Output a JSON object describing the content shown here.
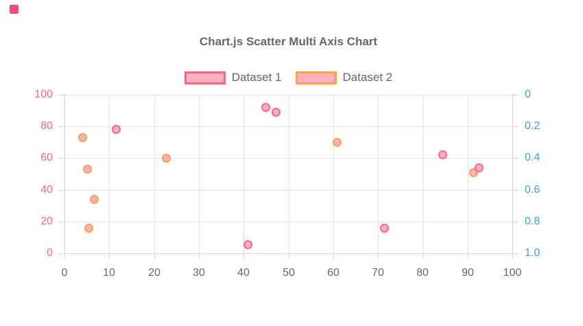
{
  "page": {
    "swatch_color": "#ef4e78"
  },
  "chart_data": {
    "type": "scatter",
    "title": "Chart.js Scatter Multi Axis Chart",
    "legend_position": "top",
    "grid": true,
    "colors": {
      "grid": "#e6e6e6",
      "axis_border": "#d4d4d4",
      "text_gray": "#666666"
    },
    "x_axis": {
      "min": 0,
      "max": 100,
      "ticks": [
        0,
        10,
        20,
        30,
        40,
        50,
        60,
        70,
        80,
        90,
        100
      ],
      "color": "#666666"
    },
    "y_axis_left": {
      "min": 0,
      "max": 100,
      "ticks": [
        100,
        80,
        60,
        40,
        20,
        0
      ],
      "color": "#ff6384"
    },
    "y_axis_right": {
      "min": 0,
      "max": 1,
      "reversed": true,
      "ticks": [
        "0",
        "0.2",
        "0.4",
        "0.6",
        "0.8",
        "1.0"
      ],
      "color": "#36a2eb"
    },
    "series": [
      {
        "name": "Dataset 1",
        "axis": "left",
        "border_color": "#ff6384",
        "fill_color": "#ffb1c1",
        "points": [
          {
            "x": 11.6,
            "y": 78
          },
          {
            "x": 41.0,
            "y": 5.5
          },
          {
            "x": 45.0,
            "y": 92
          },
          {
            "x": 47.3,
            "y": 89
          },
          {
            "x": 71.4,
            "y": 16
          },
          {
            "x": 84.5,
            "y": 62
          },
          {
            "x": 92.6,
            "y": 54
          }
        ]
      },
      {
        "name": "Dataset 2",
        "axis": "right",
        "border_color": "#ff9f40",
        "fill_color": "#ffb1c1",
        "points": [
          {
            "x": 4.1,
            "y": 0.27
          },
          {
            "x": 5.1,
            "y": 0.47
          },
          {
            "x": 6.6,
            "y": 0.66
          },
          {
            "x": 5.5,
            "y": 0.84
          },
          {
            "x": 22.7,
            "y": 0.4
          },
          {
            "x": 60.8,
            "y": 0.3
          },
          {
            "x": 91.3,
            "y": 0.49
          }
        ]
      }
    ]
  }
}
